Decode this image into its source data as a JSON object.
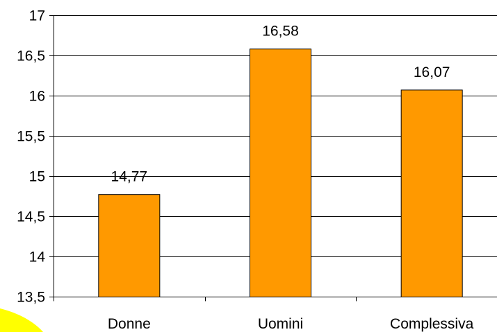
{
  "chart_data": {
    "type": "bar",
    "categories": [
      "Donne",
      "Uomini",
      "Complessiva"
    ],
    "series": [
      {
        "values": [
          14.77,
          16.58,
          16.07
        ]
      }
    ],
    "data_labels": [
      "14,77",
      "16,58",
      "16,07"
    ],
    "y_ticks": [
      13.5,
      14,
      14.5,
      15,
      15.5,
      16,
      16.5,
      17
    ],
    "y_tick_labels": [
      "13,5",
      "14",
      "14,5",
      "15",
      "15,5",
      "16",
      "16,5",
      "17"
    ],
    "ylim": [
      13.5,
      17
    ],
    "grid": true,
    "legend": "none",
    "title": "",
    "xlabel": "",
    "ylabel": ""
  },
  "colors": {
    "bar_fill": "#FF9900",
    "bar_stroke": "#000000",
    "gridline": "#000000",
    "axis": "#000000",
    "decoration": "#FFFF00"
  },
  "decorations": {
    "corner_shape": "yellow-swoosh"
  }
}
